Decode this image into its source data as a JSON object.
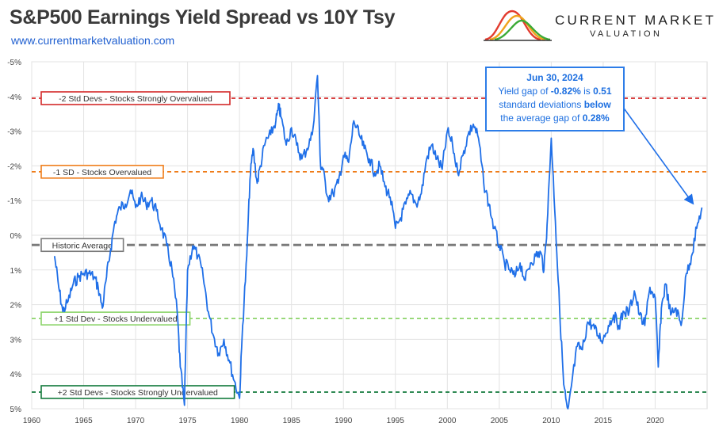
{
  "header": {
    "title": "S&P500 Earnings Yield Spread vs 10Y Tsy",
    "url": "www.currentmarketvaluation.com"
  },
  "logo": {
    "line1": "CURRENT MARKET",
    "line2": "VALUATION",
    "colors": [
      "#e23b2e",
      "#f0a31c",
      "#3aaa35"
    ]
  },
  "callout": {
    "title": "Jun 30, 2024",
    "line1_a": "Yield gap of ",
    "line1_b": "-0.82%",
    "line1_c": " is ",
    "line1_d": "0.51",
    "line2_a": "standard deviations ",
    "line2_b": "below",
    "line3_a": "the average gap of ",
    "line3_b": "0.28%"
  },
  "chart_data": {
    "type": "line",
    "title": "S&P500 Earnings Yield Spread vs 10Y Tsy",
    "xlabel": "",
    "ylabel": "",
    "x_ticks": [
      "1960",
      "1965",
      "1970",
      "1975",
      "1980",
      "1985",
      "1990",
      "1995",
      "2000",
      "2005",
      "2010",
      "2015",
      "2020"
    ],
    "y_ticks": [
      "-5%",
      "-4%",
      "-3%",
      "-2%",
      "-1%",
      "0%",
      "1%",
      "2%",
      "3%",
      "4%",
      "5%"
    ],
    "xlim": [
      1960,
      2025
    ],
    "ylim": [
      -5,
      5
    ],
    "y_inverted": true,
    "grid": "both",
    "line_color": "#1f6fe8",
    "reference_lines": [
      {
        "label": "-2 Std Devs - Stocks Strongly Overvalued",
        "value": -3.95,
        "color": "#d42a2a"
      },
      {
        "label": "-1 SD - Stocks Overvalued",
        "value": -1.83,
        "color": "#ef7d1a"
      },
      {
        "label": "Historic Average",
        "value": 0.28,
        "color": "#7b7b7b"
      },
      {
        "label": "+1 Std Dev - Stocks Undervalued",
        "value": 2.4,
        "color": "#8cd46a"
      },
      {
        "label": "+2 Std Devs - Stocks Strongly Undervalued",
        "value": 4.52,
        "color": "#137a3c"
      }
    ],
    "series": [
      {
        "x": [
          1962.2,
          1962.6,
          1963.0,
          1963.5,
          1964.0,
          1964.5,
          1965.0,
          1965.5,
          1966.0,
          1966.4,
          1966.8,
          1967.2,
          1967.6,
          1968.0,
          1968.5,
          1969.0,
          1969.5,
          1970.0,
          1970.5,
          1971.0,
          1971.5,
          1972.0,
          1972.5,
          1973.0,
          1973.5,
          1974.0,
          1974.3,
          1974.7,
          1975.0,
          1975.5,
          1976.0,
          1976.5,
          1977.0,
          1977.5,
          1978.0,
          1978.5,
          1979.0,
          1979.5,
          1980.0,
          1980.3,
          1980.7,
          1981.0,
          1981.3,
          1981.7,
          1982.0,
          1982.5,
          1983.0,
          1983.5,
          1983.8,
          1984.0,
          1984.5,
          1985.0,
          1985.5,
          1986.0,
          1986.5,
          1987.0,
          1987.5,
          1987.8,
          1988.0,
          1988.5,
          1989.0,
          1989.5,
          1990.0,
          1990.5,
          1991.0,
          1991.5,
          1992.0,
          1992.5,
          1993.0,
          1993.5,
          1994.0,
          1994.5,
          1995.0,
          1995.5,
          1996.0,
          1996.5,
          1997.0,
          1997.5,
          1998.0,
          1998.5,
          1999.0,
          1999.5,
          2000.0,
          2000.5,
          2001.0,
          2001.5,
          2002.0,
          2002.5,
          2003.0,
          2003.5,
          2004.0,
          2004.5,
          2005.0,
          2005.5,
          2006.0,
          2006.5,
          2007.0,
          2007.5,
          2008.0,
          2008.5,
          2009.0,
          2009.3,
          2009.6,
          2010.0,
          2010.4,
          2010.8,
          2011.2,
          2011.6,
          2012.0,
          2012.5,
          2013.0,
          2013.5,
          2014.0,
          2014.5,
          2015.0,
          2015.5,
          2016.0,
          2016.5,
          2017.0,
          2017.5,
          2018.0,
          2018.5,
          2019.0,
          2019.5,
          2020.0,
          2020.3,
          2020.6,
          2021.0,
          2021.5,
          2022.0,
          2022.5,
          2023.0,
          2023.5,
          2024.0,
          2024.5
        ],
        "values": [
          0.6,
          1.5,
          2.2,
          1.9,
          1.4,
          1.2,
          1.1,
          1.1,
          1.2,
          1.5,
          2.1,
          1.2,
          0.4,
          -0.4,
          -0.8,
          -0.9,
          -1.3,
          -0.8,
          -1.1,
          -0.9,
          -1.0,
          -0.7,
          -0.2,
          0.3,
          1.0,
          2.2,
          3.8,
          4.9,
          1.0,
          0.3,
          0.6,
          1.2,
          2.2,
          2.9,
          3.4,
          3.0,
          3.6,
          4.2,
          4.7,
          2.6,
          0.6,
          -1.6,
          -2.5,
          -1.5,
          -2.0,
          -2.7,
          -2.9,
          -3.3,
          -3.7,
          -3.4,
          -2.6,
          -3.1,
          -2.6,
          -2.2,
          -2.5,
          -2.9,
          -4.6,
          -2.0,
          -1.9,
          -1.1,
          -1.2,
          -1.5,
          -2.3,
          -2.1,
          -3.3,
          -2.9,
          -2.5,
          -2.2,
          -1.8,
          -2.0,
          -1.4,
          -1.1,
          -0.2,
          -0.5,
          -0.9,
          -1.2,
          -0.9,
          -1.2,
          -2.2,
          -2.6,
          -2.2,
          -1.9,
          -3.0,
          -2.6,
          -1.8,
          -2.3,
          -2.9,
          -3.2,
          -2.8,
          -1.5,
          -0.9,
          -0.2,
          0.3,
          0.8,
          1.0,
          1.2,
          0.8,
          1.3,
          0.8,
          0.6,
          0.5,
          1.0,
          -0.3,
          -2.8,
          -0.4,
          2.1,
          4.3,
          5.2,
          4.2,
          3.2,
          3.3,
          2.5,
          2.6,
          2.9,
          3.0,
          2.6,
          2.3,
          2.6,
          2.2,
          2.2,
          1.6,
          2.3,
          2.6,
          1.5,
          1.8,
          3.8,
          2.1,
          1.4,
          2.3,
          2.1,
          2.6,
          1.1,
          0.6,
          -0.2,
          -0.8
        ]
      }
    ]
  }
}
